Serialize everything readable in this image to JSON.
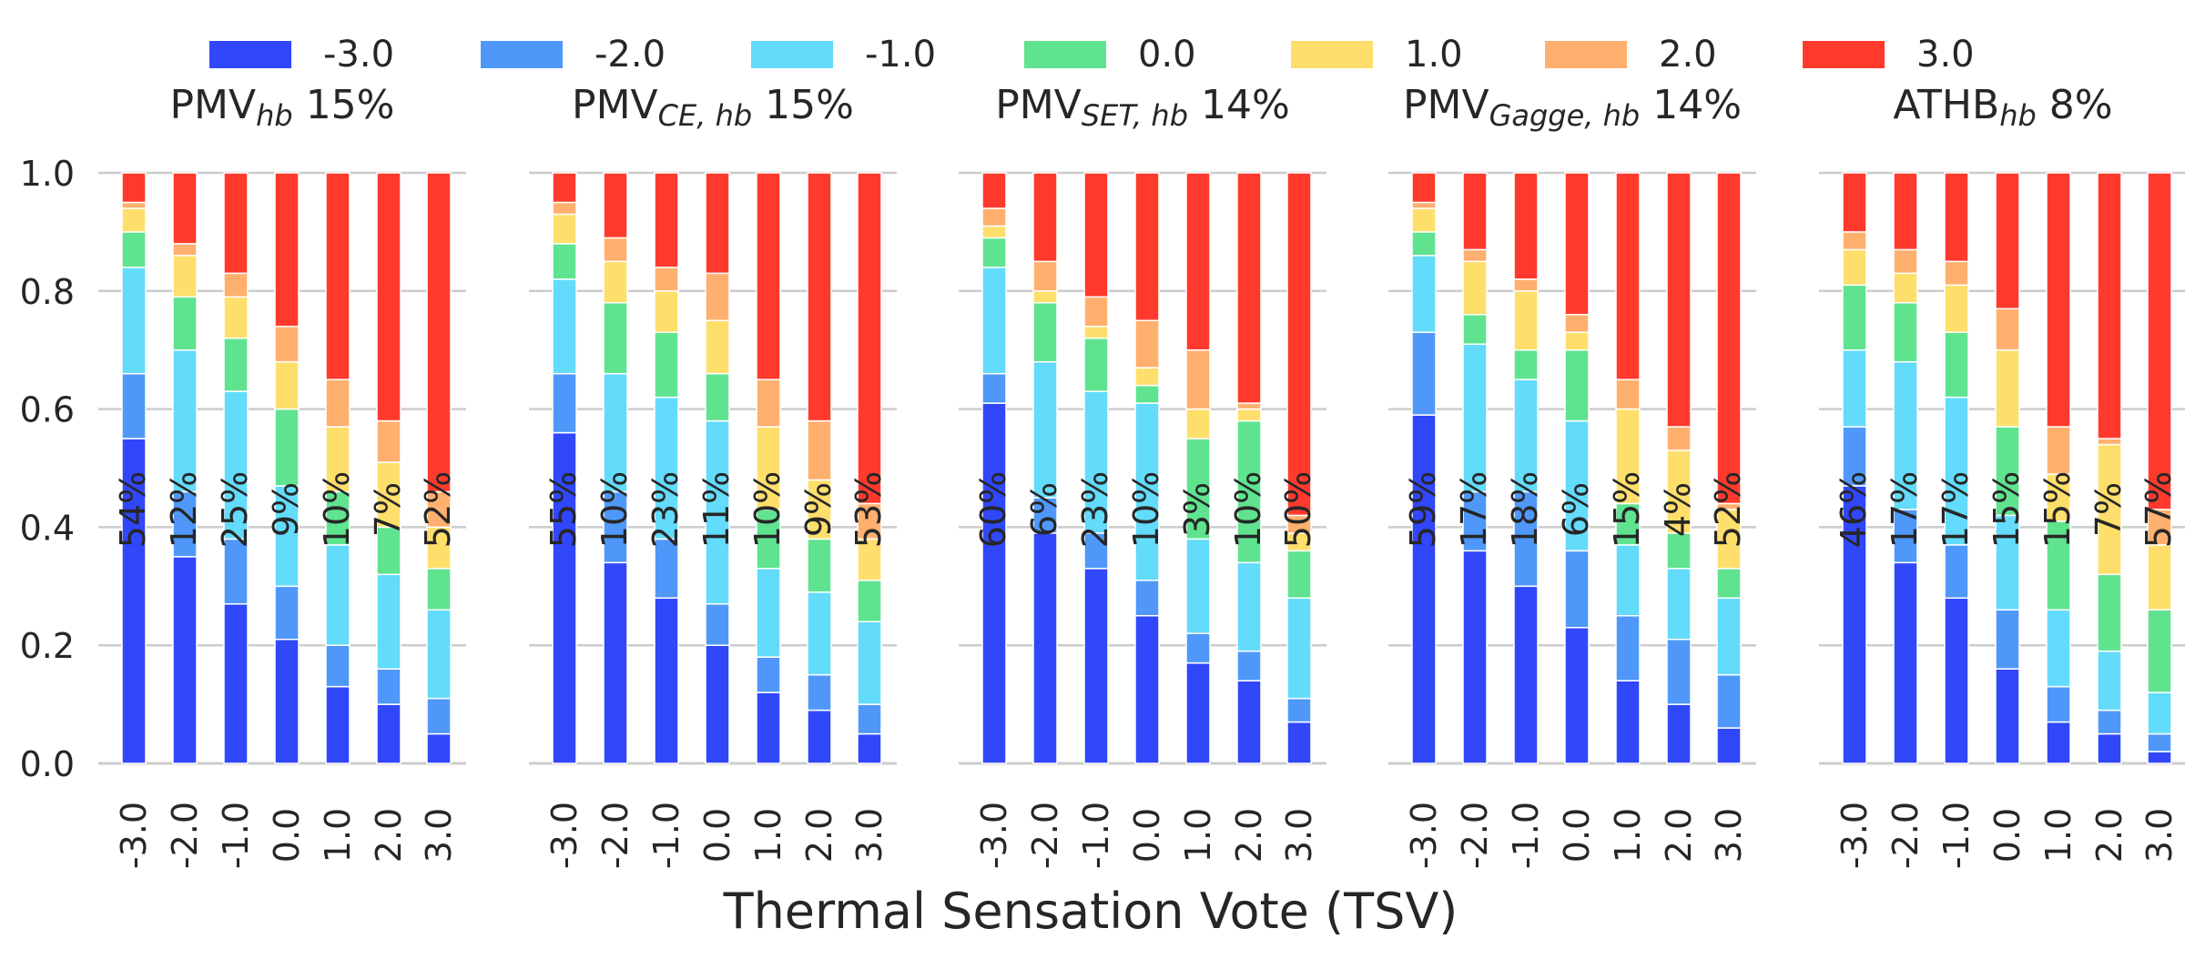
{
  "chart_data": {
    "type": "bar",
    "stacked": true,
    "xlabel": "Thermal Sensation Vote (TSV)",
    "ylim": [
      0,
      1
    ],
    "yticks": [
      "0.0",
      "0.2",
      "0.4",
      "0.6",
      "0.8",
      "1.0"
    ],
    "categories": [
      "-3.0",
      "-2.0",
      "-1.0",
      "0.0",
      "1.0",
      "2.0",
      "3.0"
    ],
    "grid": true,
    "legend_position": "top",
    "legend": [
      "-3.0",
      "-2.0",
      "-1.0",
      "0.0",
      "1.0",
      "2.0",
      "3.0"
    ],
    "colors": [
      "#3047fa",
      "#4f98fa",
      "#63dbfa",
      "#5fe38f",
      "#ffdf6b",
      "#ffb06e",
      "#ff3a2d"
    ],
    "panels": [
      {
        "title_main": "PMV",
        "title_sub": "hb",
        "title_pct": "15%",
        "bar_labels": [
          "54%",
          "12%",
          "25%",
          "9%",
          "10%",
          "7%",
          "52%"
        ],
        "stacks": [
          [
            0.55,
            0.11,
            0.18,
            0.06,
            0.04,
            0.01,
            0.05
          ],
          [
            0.35,
            0.11,
            0.24,
            0.09,
            0.07,
            0.02,
            0.12
          ],
          [
            0.27,
            0.11,
            0.25,
            0.09,
            0.07,
            0.04,
            0.17
          ],
          [
            0.21,
            0.09,
            0.17,
            0.13,
            0.08,
            0.06,
            0.26
          ],
          [
            0.13,
            0.07,
            0.17,
            0.09,
            0.11,
            0.08,
            0.35
          ],
          [
            0.1,
            0.06,
            0.16,
            0.08,
            0.11,
            0.07,
            0.42
          ],
          [
            0.05,
            0.06,
            0.15,
            0.07,
            0.07,
            0.06,
            0.54
          ]
        ]
      },
      {
        "title_main": "PMV",
        "title_sub": "CE, hb",
        "title_pct": "15%",
        "bar_labels": [
          "55%",
          "10%",
          "23%",
          "11%",
          "10%",
          "9%",
          "53%"
        ],
        "stacks": [
          [
            0.56,
            0.1,
            0.16,
            0.06,
            0.05,
            0.02,
            0.05
          ],
          [
            0.34,
            0.12,
            0.2,
            0.12,
            0.07,
            0.04,
            0.11
          ],
          [
            0.28,
            0.1,
            0.24,
            0.11,
            0.07,
            0.04,
            0.16
          ],
          [
            0.2,
            0.07,
            0.31,
            0.08,
            0.09,
            0.08,
            0.17
          ],
          [
            0.12,
            0.06,
            0.15,
            0.1,
            0.14,
            0.08,
            0.35
          ],
          [
            0.09,
            0.06,
            0.14,
            0.09,
            0.1,
            0.1,
            0.42
          ],
          [
            0.05,
            0.05,
            0.14,
            0.07,
            0.07,
            0.06,
            0.56
          ]
        ]
      },
      {
        "title_main": "PMV",
        "title_sub": "SET, hb",
        "title_pct": "14%",
        "bar_labels": [
          "60%",
          "6%",
          "23%",
          "10%",
          "3%",
          "10%",
          "50%"
        ],
        "stacks": [
          [
            0.61,
            0.05,
            0.18,
            0.05,
            0.02,
            0.03,
            0.06
          ],
          [
            0.39,
            0.06,
            0.23,
            0.1,
            0.02,
            0.05,
            0.15
          ],
          [
            0.33,
            0.06,
            0.24,
            0.09,
            0.02,
            0.05,
            0.21
          ],
          [
            0.25,
            0.06,
            0.3,
            0.03,
            0.03,
            0.08,
            0.25
          ],
          [
            0.17,
            0.05,
            0.16,
            0.17,
            0.05,
            0.1,
            0.3
          ],
          [
            0.14,
            0.05,
            0.15,
            0.24,
            0.02,
            0.01,
            0.39
          ],
          [
            0.07,
            0.04,
            0.17,
            0.08,
            0.03,
            0.03,
            0.58
          ]
        ]
      },
      {
        "title_main": "PMV",
        "title_sub": "Gagge, hb",
        "title_pct": "14%",
        "bar_labels": [
          "59%",
          "17%",
          "18%",
          "6%",
          "15%",
          "4%",
          "52%"
        ],
        "stacks": [
          [
            0.59,
            0.14,
            0.13,
            0.04,
            0.04,
            0.01,
            0.05
          ],
          [
            0.36,
            0.1,
            0.25,
            0.05,
            0.09,
            0.02,
            0.13
          ],
          [
            0.3,
            0.16,
            0.19,
            0.05,
            0.1,
            0.02,
            0.18
          ],
          [
            0.23,
            0.13,
            0.22,
            0.12,
            0.03,
            0.03,
            0.24
          ],
          [
            0.14,
            0.11,
            0.12,
            0.07,
            0.16,
            0.05,
            0.35
          ],
          [
            0.1,
            0.11,
            0.12,
            0.06,
            0.14,
            0.04,
            0.43
          ],
          [
            0.06,
            0.09,
            0.13,
            0.05,
            0.1,
            0.01,
            0.56
          ]
        ]
      },
      {
        "title_main": "ATHB",
        "title_sub": "hb",
        "title_pct": "8%",
        "bar_labels": [
          "46%",
          "17%",
          "17%",
          "15%",
          "15%",
          "7%",
          "57%"
        ],
        "stacks": [
          [
            0.47,
            0.1,
            0.13,
            0.11,
            0.06,
            0.03,
            0.1
          ],
          [
            0.34,
            0.09,
            0.25,
            0.1,
            0.05,
            0.04,
            0.13
          ],
          [
            0.28,
            0.09,
            0.25,
            0.11,
            0.08,
            0.04,
            0.15
          ],
          [
            0.16,
            0.1,
            0.16,
            0.15,
            0.13,
            0.07,
            0.23
          ],
          [
            0.07,
            0.06,
            0.13,
            0.15,
            0.08,
            0.08,
            0.43
          ],
          [
            0.05,
            0.04,
            0.1,
            0.13,
            0.22,
            0.01,
            0.45
          ],
          [
            0.02,
            0.03,
            0.07,
            0.14,
            0.11,
            0.06,
            0.57
          ]
        ]
      }
    ]
  }
}
